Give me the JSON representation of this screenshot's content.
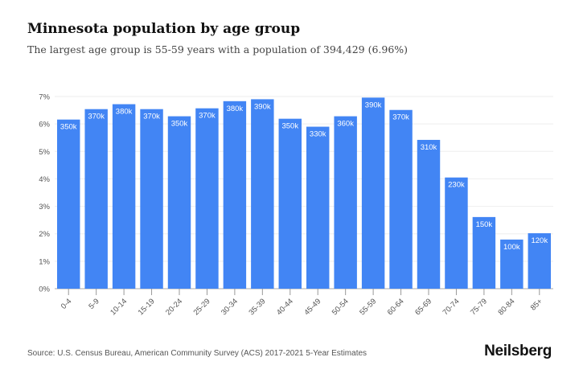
{
  "chart_data": {
    "type": "bar",
    "title": "Minnesota population by age group",
    "subtitle": "The largest age group is 55-59 years with a population of 394,429 (6.96%)",
    "xlabel": "",
    "ylabel": "",
    "categories": [
      "0-4",
      "5-9",
      "10-14",
      "15-19",
      "20-24",
      "25-29",
      "30-34",
      "35-39",
      "40-44",
      "45-49",
      "50-54",
      "55-59",
      "60-64",
      "65-69",
      "70-74",
      "75-79",
      "80-84",
      "85+"
    ],
    "values": [
      6.16,
      6.54,
      6.72,
      6.54,
      6.28,
      6.57,
      6.83,
      6.9,
      6.19,
      5.9,
      6.28,
      6.96,
      6.51,
      5.42,
      4.05,
      2.61,
      1.79,
      2.02
    ],
    "data_labels": [
      "350k",
      "370k",
      "380k",
      "370k",
      "350k",
      "370k",
      "380k",
      "390k",
      "350k",
      "330k",
      "360k",
      "390k",
      "370k",
      "310k",
      "230k",
      "150k",
      "100k",
      "120k"
    ],
    "ylim": [
      0,
      7
    ],
    "yticks": [
      "0%",
      "1%",
      "2%",
      "3%",
      "4%",
      "5%",
      "6%",
      "7%"
    ],
    "grid": true,
    "bar_color": "#4285f4"
  },
  "footer": {
    "source": "Source: U.S. Census Bureau, American Community Survey (ACS) 2017-2021 5-Year Estimates",
    "logo": "Neilsberg"
  }
}
